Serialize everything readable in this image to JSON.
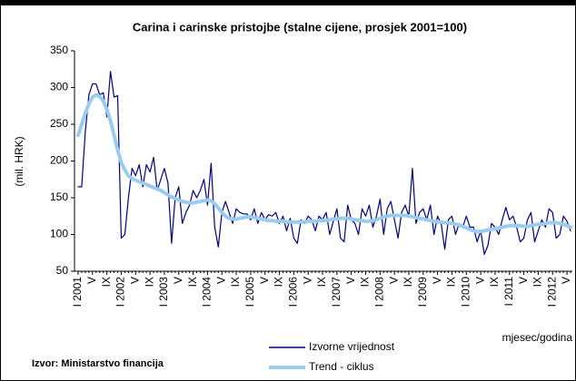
{
  "chart_data": {
    "type": "line",
    "title": "Carina i carinske pristojbe (stalne cijene, prosjek 2001=100)",
    "y_label": "(mil. HRK)",
    "x_label": "mjesec/godina",
    "source": "Izvor: Ministarstvo financija",
    "ylim": [
      50,
      350
    ],
    "yticks": [
      50,
      100,
      150,
      200,
      250,
      300,
      350
    ],
    "categories": [
      "I 2001",
      null,
      null,
      null,
      "V",
      null,
      null,
      null,
      "IX",
      null,
      null,
      null,
      "I 2002",
      null,
      null,
      null,
      "V",
      null,
      null,
      null,
      "IX",
      null,
      null,
      null,
      "I 2003",
      null,
      null,
      null,
      "V",
      null,
      null,
      null,
      "IX",
      null,
      null,
      null,
      "I 2004",
      null,
      null,
      null,
      "V",
      null,
      null,
      null,
      "IX",
      null,
      null,
      null,
      "I 2005",
      null,
      null,
      null,
      "V",
      null,
      null,
      null,
      "IX",
      null,
      null,
      null,
      "I 2006",
      null,
      null,
      null,
      "V",
      null,
      null,
      null,
      "IX",
      null,
      null,
      null,
      "I 2007",
      null,
      null,
      null,
      "V",
      null,
      null,
      null,
      "IX",
      null,
      null,
      null,
      "I 2008",
      null,
      null,
      null,
      "V",
      null,
      null,
      null,
      "IX",
      null,
      null,
      null,
      "I 2009",
      null,
      null,
      null,
      "V",
      null,
      null,
      null,
      "IX",
      null,
      null,
      null,
      "I 2010",
      null,
      null,
      null,
      "V",
      null,
      null,
      null,
      "IX",
      null,
      null,
      null,
      "I 2011",
      null,
      null,
      null,
      "V",
      null,
      null,
      null,
      "IX",
      null,
      null,
      null,
      "I 2012",
      null,
      null,
      null,
      "V",
      null
    ],
    "series": [
      {
        "name": "Izvorne vrijednost",
        "color": "#000080",
        "values": [
          165,
          165,
          240,
          290,
          305,
          305,
          290,
          293,
          260,
          322,
          287,
          289,
          95,
          100,
          150,
          190,
          180,
          195,
          165,
          195,
          185,
          205,
          160,
          175,
          190,
          170,
          88,
          150,
          165,
          115,
          130,
          140,
          160,
          150,
          160,
          175,
          140,
          197,
          110,
          83,
          130,
          145,
          130,
          115,
          135,
          130,
          128,
          128,
          120,
          135,
          115,
          130,
          120,
          127,
          125,
          130,
          115,
          125,
          105,
          122,
          95,
          88,
          120,
          115,
          125,
          120,
          105,
          125,
          120,
          130,
          100,
          118,
          135,
          95,
          90,
          140,
          120,
          115,
          100,
          135,
          125,
          140,
          110,
          125,
          148,
          100,
          135,
          145,
          120,
          95,
          130,
          140,
          125,
          190,
          115,
          130,
          135,
          120,
          140,
          100,
          125,
          115,
          80,
          120,
          125,
          100,
          115,
          110,
          125,
          110,
          110,
          90,
          105,
          73,
          85,
          115,
          110,
          100,
          120,
          137,
          120,
          125,
          110,
          90,
          95,
          120,
          130,
          90,
          105,
          120,
          110,
          135,
          130,
          95,
          100,
          125,
          118,
          105
        ]
      },
      {
        "name": "Trend - ciklus",
        "color": "#99ccee",
        "values": [
          235,
          250,
          265,
          278,
          287,
          290,
          288,
          282,
          270,
          255,
          235,
          215,
          198,
          188,
          180,
          176,
          174,
          172,
          170,
          168,
          166,
          164,
          162,
          160,
          157,
          154,
          151,
          149,
          147,
          145,
          144,
          143,
          143,
          144,
          145,
          146,
          147,
          146,
          142,
          136,
          130,
          125,
          122,
          121,
          121,
          122,
          123,
          124,
          124,
          123,
          122,
          121,
          120,
          119,
          119,
          118,
          118,
          118,
          117,
          117,
          117,
          117,
          117,
          117,
          118,
          118,
          118,
          119,
          119,
          119,
          120,
          121,
          121,
          122,
          122,
          122,
          121,
          120,
          119,
          119,
          118,
          118,
          119,
          120,
          122,
          124,
          125,
          126,
          126,
          126,
          126,
          126,
          125,
          124,
          123,
          122,
          121,
          120,
          119,
          118,
          117,
          117,
          116,
          116,
          115,
          114,
          113,
          111,
          109,
          107,
          105,
          104,
          104,
          105,
          106,
          107,
          108,
          109,
          110,
          111,
          112,
          112,
          112,
          112,
          111,
          111,
          112,
          113,
          114,
          114,
          115,
          116,
          116,
          116,
          115,
          114,
          112,
          110
        ]
      }
    ]
  }
}
